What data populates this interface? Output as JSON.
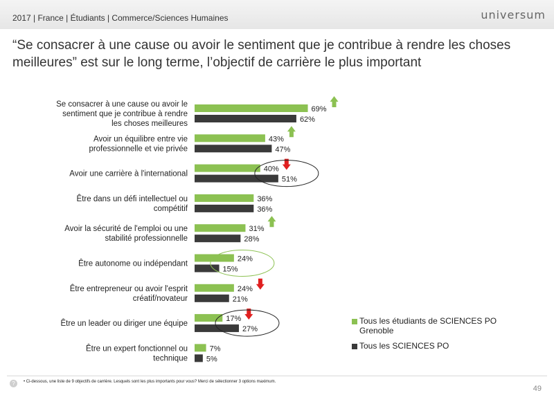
{
  "header": {
    "breadcrumb": "2017 | France | Étudiants | Commerce/Sciences Humaines",
    "logo": "universum"
  },
  "headline": "“Se consacrer à une cause ou avoir le sentiment que je contribue à rendre les choses meilleures” est sur le long terme, l’objectif de carrière le plus important",
  "colors": {
    "green": "#8cc152",
    "dark": "#3a3a3a",
    "arrow_up": "#8cc152",
    "arrow_down": "#e02020"
  },
  "chart_data": {
    "type": "bar",
    "orientation": "horizontal",
    "categories": [
      [
        "Se consacrer à une cause ou avoir le",
        "sentiment que je contribue à rendre",
        "les choses meilleures"
      ],
      [
        "Avoir un équilibre entre vie",
        "professionnelle et vie privée"
      ],
      [
        "Avoir une carrière à l'international"
      ],
      [
        "Être dans un défi intellectuel ou",
        "compétitif"
      ],
      [
        "Avoir la sécurité de l'emploi ou une",
        "stabilité professionnelle"
      ],
      [
        "Être autonome ou indépendant"
      ],
      [
        "Être entrepreneur ou avoir l'esprit",
        "créatif/novateur"
      ],
      [
        "Être un leader ou diriger une équipe"
      ],
      [
        "Être un expert fonctionnel ou",
        "technique"
      ]
    ],
    "series": [
      {
        "name": "Tous les étudiants de SCIENCES PO Grenoble",
        "values": [
          69,
          43,
          40,
          36,
          31,
          24,
          24,
          17,
          7
        ],
        "color": "#8cc152"
      },
      {
        "name": "Tous les SCIENCES PO",
        "values": [
          62,
          47,
          51,
          36,
          28,
          15,
          21,
          27,
          5
        ],
        "color": "#3a3a3a"
      }
    ],
    "value_suffix": "%",
    "trend_arrows": [
      "up",
      "up",
      "down",
      "none",
      "up",
      "none",
      "down",
      "down",
      "none"
    ],
    "highlight_circles": [
      {
        "category_index": 2,
        "color": "#222222"
      },
      {
        "category_index": 5,
        "color": "#8cc152"
      },
      {
        "category_index": 7,
        "color": "#222222"
      }
    ],
    "xlim": [
      0,
      100
    ],
    "legend_position": "bottom-right",
    "grid": false
  },
  "legend": {
    "items": [
      {
        "label": "Tous les étudiants de SCIENCES PO Grenoble"
      },
      {
        "label": "Tous les SCIENCES PO"
      }
    ]
  },
  "footer": {
    "icon": "question-icon",
    "note": "• Ci-dessous, une liste de 9 objectifs de carrière. Lesquels sont les plus importants pour vous? Merci de sélectionner 3 options maximum.",
    "page_number": "49"
  }
}
